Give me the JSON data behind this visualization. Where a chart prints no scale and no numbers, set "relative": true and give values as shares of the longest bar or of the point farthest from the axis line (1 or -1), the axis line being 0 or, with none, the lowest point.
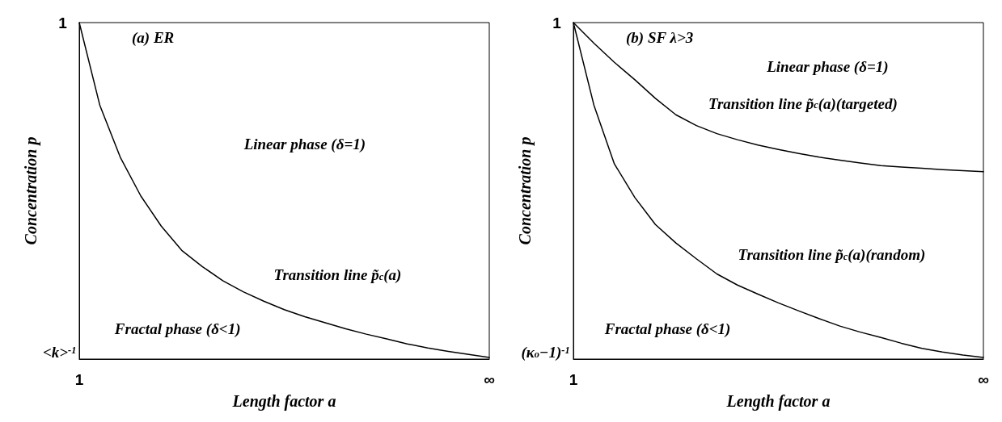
{
  "chart_data": [
    {
      "type": "line",
      "title": "(a) ER",
      "xlabel": "Length factor a",
      "ylabel": "Concentration p",
      "relative": true,
      "categories": [
        null,
        null,
        null,
        null,
        null,
        null,
        null,
        null,
        null,
        null,
        null,
        null,
        null,
        null,
        null,
        null,
        null,
        null,
        null,
        null,
        null
      ],
      "grid": false,
      "marker": "none",
      "line_style": "solid",
      "series": [
        {
          "color": "#000000",
          "values": [
            1,
            0.755,
            0.6,
            0.485,
            0.395,
            0.323,
            0.275,
            0.233,
            0.2,
            0.172,
            0.147,
            0.126,
            0.108,
            0.09,
            0.074,
            0.06,
            0.045,
            0.033,
            0.023,
            0.014,
            0.005
          ]
        }
      ],
      "annotations": [
        "1",
        "<k>$^{-1}$",
        "1",
        "∞",
        "Linear phase (δ=1)",
        "Transition line p̃$_{c}$(a)",
        "Fractal phase (δ<1)"
      ]
    },
    {
      "type": "line",
      "title": "(b) SF λ>3",
      "xlabel": "Length factor a",
      "ylabel": "Concentration p",
      "relative": true,
      "categories": [
        null,
        null,
        null,
        null,
        null,
        null,
        null,
        null,
        null,
        null,
        null,
        null,
        null,
        null,
        null,
        null,
        null,
        null,
        null,
        null,
        null
      ],
      "grid": false,
      "marker": "none",
      "line_style": "solid",
      "series": [
        {
          "color": "#000000",
          "values": [
            1,
            0.939,
            0.882,
            0.83,
            0.775,
            0.726,
            0.694,
            0.67,
            0.652,
            0.636,
            0.623,
            0.611,
            0.6,
            0.591,
            0.583,
            0.575,
            0.571,
            0.567,
            0.563,
            0.56,
            0.557
          ]
        },
        {
          "color": "#000000",
          "values": [
            1,
            0.755,
            0.58,
            0.48,
            0.4,
            0.345,
            0.298,
            0.253,
            0.22,
            0.193,
            0.167,
            0.143,
            0.12,
            0.098,
            0.08,
            0.064,
            0.047,
            0.032,
            0.021,
            0.012,
            0.005
          ]
        }
      ],
      "annotations": [
        "1",
        "(κ$_{o}$−1)$^{-1}$",
        "1",
        "∞",
        "Linear phase (δ=1)",
        "Transition line p̃$_{c}$(a)(targeted)",
        "Transition line p̃$_{c}$(a)(random)",
        "Fractal phase (δ<1)"
      ]
    }
  ]
}
